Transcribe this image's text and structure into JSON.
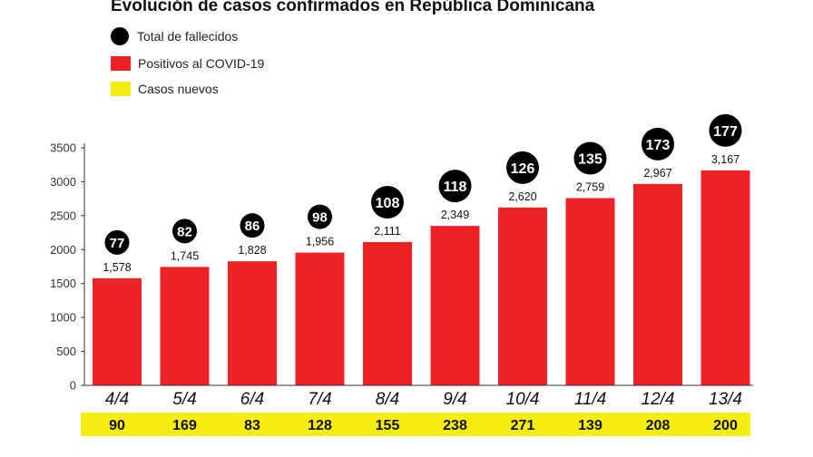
{
  "title": "Evolución de casos confirmados en República Dominicana",
  "legend": [
    {
      "label": "Total de fallecidos",
      "color": "#000000",
      "shape": "circle"
    },
    {
      "label": "Positivos al COVID-19",
      "color": "#ec2227",
      "shape": "square"
    },
    {
      "label": "Casos nuevos",
      "color": "#f5ec12",
      "shape": "square"
    }
  ],
  "chart_data": {
    "type": "bar",
    "categories": [
      "4/4",
      "5/4",
      "6/4",
      "7/4",
      "8/4",
      "9/4",
      "10/4",
      "11/4",
      "12/4",
      "13/4"
    ],
    "series": [
      {
        "name": "Positivos al COVID-19",
        "values": [
          1578,
          1745,
          1828,
          1956,
          2111,
          2349,
          2620,
          2759,
          2967,
          3167
        ],
        "color": "#ec2227"
      },
      {
        "name": "Total de fallecidos",
        "values": [
          77,
          82,
          86,
          98,
          108,
          118,
          126,
          135,
          173,
          177
        ],
        "color": "#000000"
      },
      {
        "name": "Casos nuevos",
        "values": [
          90,
          169,
          83,
          128,
          155,
          238,
          271,
          139,
          208,
          200
        ],
        "color": "#f5ec12"
      }
    ],
    "bar_labels": [
      "1,578",
      "1,745",
      "1,828",
      "1,956",
      "2,111",
      "2,349",
      "2,620",
      "2,759",
      "2,967",
      "3,167"
    ],
    "yticks": [
      0,
      500,
      1000,
      1500,
      2000,
      2500,
      3000,
      3500
    ],
    "ylim": [
      0,
      3500
    ],
    "grid": false,
    "xlabel": "",
    "ylabel": ""
  }
}
